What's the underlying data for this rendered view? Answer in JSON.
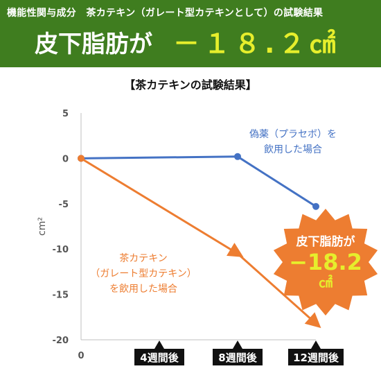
{
  "header": {
    "subtitle": "機能性関与成分　茶カテキン（ガレート型カテキンとして）の試験結果",
    "headline": "皮下脂肪が",
    "value": "－１８.２㎠"
  },
  "colors": {
    "header_bg": "#3f7d1f",
    "accent_yellow": "#e6ee2c",
    "placebo": "#4472c4",
    "catechin": "#ed7d31"
  },
  "chart_data": {
    "type": "line",
    "title": "【茶カテキンの試験結果】",
    "ylabel": "cm²",
    "ylim": [
      -20,
      5
    ],
    "yticks": [
      "5",
      "0",
      "-5",
      "-10",
      "-15",
      "-20"
    ],
    "xlim": [
      0,
      12
    ],
    "x_origin_label": "0",
    "x_categories": [
      "4週間後",
      "8週間後",
      "12週間後"
    ],
    "x_category_positions": [
      4,
      8,
      12
    ],
    "series": [
      {
        "name": "偽薬（プラセボ）を 飲用した場合",
        "color": "#4472c4",
        "x": [
          0,
          8,
          12
        ],
        "y": [
          0,
          0.2,
          -5.3
        ]
      },
      {
        "name": "茶カテキン （ガレート型カテキン） を飲用した場合",
        "color": "#ed7d31",
        "x": [
          0,
          8,
          12
        ],
        "y": [
          0,
          -10.5,
          -18.2
        ]
      }
    ],
    "annotations": {
      "placebo_label": [
        "偽薬（プラセボ）を",
        "飲用した場合"
      ],
      "catechin_label": [
        "茶カテキン",
        "（ガレート型カテキン）",
        "を飲用した場合"
      ],
      "badge": [
        "皮下脂肪が",
        "−18.2",
        "㎠"
      ]
    }
  }
}
